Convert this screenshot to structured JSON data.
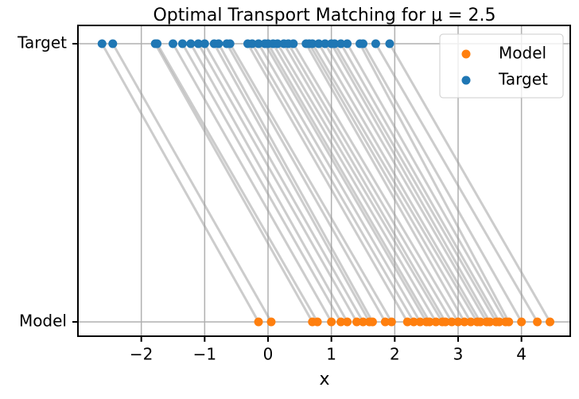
{
  "chart_data": {
    "type": "scatter",
    "title": "Optimal Transport Matching for μ = 2.5",
    "xlabel": "x",
    "categories": [
      "Model",
      "Target"
    ],
    "series": [
      {
        "name": "Model",
        "color": "#ff7f0e",
        "values": [
          -0.15,
          0.05,
          0.7,
          0.78,
          1.0,
          1.15,
          1.25,
          1.4,
          1.5,
          1.6,
          1.65,
          1.85,
          1.95,
          2.2,
          2.3,
          2.4,
          2.5,
          2.55,
          2.65,
          2.75,
          2.8,
          2.9,
          3.0,
          3.1,
          3.2,
          3.3,
          3.35,
          3.45,
          3.5,
          3.6,
          3.65,
          3.75,
          3.8,
          4.0,
          4.25,
          4.45
        ]
      },
      {
        "name": "Target",
        "color": "#1f77b4",
        "values": [
          -2.62,
          -2.45,
          -1.78,
          -1.75,
          -1.5,
          -1.35,
          -1.22,
          -1.1,
          -1.0,
          -0.85,
          -0.78,
          -0.65,
          -0.6,
          -0.32,
          -0.25,
          -0.15,
          -0.05,
          0.0,
          0.08,
          0.15,
          0.25,
          0.32,
          0.4,
          0.6,
          0.65,
          0.7,
          0.8,
          0.9,
          1.0,
          1.05,
          1.15,
          1.25,
          1.45,
          1.5,
          1.7,
          1.92
        ]
      }
    ],
    "xlim": [
      -3.0,
      4.77
    ],
    "xticks": [
      {
        "value": -2,
        "label": "−2"
      },
      {
        "value": -1,
        "label": "−1"
      },
      0,
      1,
      2,
      3,
      4
    ],
    "grid": true,
    "legend": "upper right"
  }
}
